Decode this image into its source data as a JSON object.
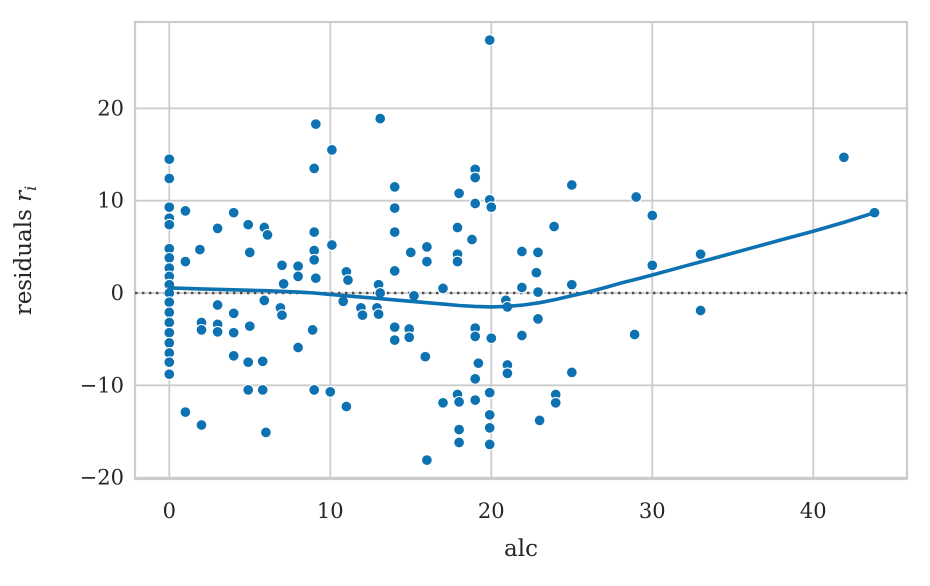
{
  "chart_data": {
    "type": "scatter",
    "title": "",
    "xlabel": "alc",
    "ylabel": {
      "text": "residuals ",
      "var": "r",
      "sub": "i"
    },
    "xlim": [
      -2.13,
      45.82
    ],
    "ylim": [
      -20.15,
      29.36
    ],
    "grid": true,
    "legend": "none",
    "xticks": [
      {
        "value": 0,
        "label": "0"
      },
      {
        "value": 10,
        "label": "10"
      },
      {
        "value": 20,
        "label": "20"
      },
      {
        "value": 30,
        "label": "30"
      },
      {
        "value": 40,
        "label": "40"
      }
    ],
    "yticks": [
      {
        "value": 20,
        "label": "20"
      },
      {
        "value": 10,
        "label": "10"
      },
      {
        "value": 0,
        "label": "0"
      },
      {
        "value": -10,
        "label": "−10"
      },
      {
        "value": -20,
        "label": "−20"
      }
    ],
    "zero_line": {
      "y": 0,
      "style": "dotted",
      "color": "#4d4d4d"
    },
    "colors": {
      "marker": "#0d72b2",
      "marker_edge": "#ffffff",
      "trend": "#0d72b2",
      "grid": "#cccccc",
      "spine": "#cccccc",
      "text": "#262626"
    },
    "points": [
      [
        0,
        14.5
      ],
      [
        0,
        12.4
      ],
      [
        0,
        9.3
      ],
      [
        0,
        8.1
      ],
      [
        0,
        7.4
      ],
      [
        0,
        4.8
      ],
      [
        0,
        3.8
      ],
      [
        0,
        2.7
      ],
      [
        0,
        1.8
      ],
      [
        0,
        0.9
      ],
      [
        0,
        0
      ],
      [
        0,
        -1
      ],
      [
        0,
        -2.1
      ],
      [
        0,
        -3.2
      ],
      [
        0,
        -4.3
      ],
      [
        0,
        -5.4
      ],
      [
        0,
        -6.5
      ],
      [
        0,
        -7.5
      ],
      [
        0,
        -8.8
      ],
      [
        1,
        8.9
      ],
      [
        1.9,
        4.7
      ],
      [
        1,
        3.4
      ],
      [
        2,
        -3.2
      ],
      [
        2,
        -4
      ],
      [
        1,
        -12.9
      ],
      [
        2,
        -14.3
      ],
      [
        3,
        7
      ],
      [
        4,
        8.7
      ],
      [
        4.9,
        7.4
      ],
      [
        5.9,
        7.1
      ],
      [
        6.1,
        6.3
      ],
      [
        5,
        4.4
      ],
      [
        3,
        -1.3
      ],
      [
        4,
        -2.2
      ],
      [
        3,
        -3.4
      ],
      [
        3,
        -4.2
      ],
      [
        4,
        -4.3
      ],
      [
        5,
        -3.6
      ],
      [
        5.9,
        -0.8
      ],
      [
        4,
        -6.8
      ],
      [
        4.9,
        -7.5
      ],
      [
        5.8,
        -7.4
      ],
      [
        4.9,
        -10.5
      ],
      [
        5.8,
        -10.5
      ],
      [
        6,
        -15.1
      ],
      [
        7,
        3
      ],
      [
        8,
        2.9
      ],
      [
        8,
        1.8
      ],
      [
        7.1,
        1
      ],
      [
        6.9,
        -1.6
      ],
      [
        7,
        -2.4
      ],
      [
        8,
        -5.9
      ],
      [
        8.9,
        -4
      ],
      [
        9,
        -10.5
      ],
      [
        10,
        -10.7
      ],
      [
        9,
        6.6
      ],
      [
        9,
        4.6
      ],
      [
        9,
        3.6
      ],
      [
        9.1,
        1.6
      ],
      [
        9.1,
        18.3
      ],
      [
        10.1,
        15.5
      ],
      [
        9,
        13.5
      ],
      [
        13.1,
        18.9
      ],
      [
        10.1,
        5.2
      ],
      [
        11,
        2.3
      ],
      [
        11.1,
        1.4
      ],
      [
        10.8,
        -0.9
      ],
      [
        11.9,
        -1.6
      ],
      [
        12,
        -2.4
      ],
      [
        12.9,
        -1.6
      ],
      [
        13,
        -2.3
      ],
      [
        13,
        0.9
      ],
      [
        13.1,
        0
      ],
      [
        11,
        -12.3
      ],
      [
        14,
        11.5
      ],
      [
        14,
        9.2
      ],
      [
        14,
        6.6
      ],
      [
        14,
        2.4
      ],
      [
        15,
        4.4
      ],
      [
        16,
        5
      ],
      [
        16,
        3.4
      ],
      [
        15.2,
        -0.3
      ],
      [
        14,
        -3.7
      ],
      [
        14.9,
        -3.9
      ],
      [
        14,
        -5.1
      ],
      [
        14.9,
        -4.8
      ],
      [
        15.9,
        -6.9
      ],
      [
        16,
        -18.1
      ],
      [
        17,
        0.5
      ],
      [
        17.9,
        7.1
      ],
      [
        18.8,
        5.8
      ],
      [
        17.9,
        4.2
      ],
      [
        17.9,
        3.4
      ],
      [
        19,
        13.4
      ],
      [
        19,
        12.5
      ],
      [
        18,
        10.8
      ],
      [
        19,
        9.7
      ],
      [
        19.9,
        10.1
      ],
      [
        20,
        9.3
      ],
      [
        19.9,
        27.4
      ],
      [
        19,
        -3.8
      ],
      [
        19,
        -4.7
      ],
      [
        20,
        -4.9
      ],
      [
        19.2,
        -7.6
      ],
      [
        19,
        -9.3
      ],
      [
        17,
        -11.9
      ],
      [
        17.9,
        -11
      ],
      [
        18,
        -11.8
      ],
      [
        19,
        -11.6
      ],
      [
        19.9,
        -10.8
      ],
      [
        19.9,
        -13.2
      ],
      [
        19.9,
        -14.6
      ],
      [
        18,
        -14.8
      ],
      [
        18,
        -16.2
      ],
      [
        19.9,
        -16.4
      ],
      [
        20.9,
        -0.8
      ],
      [
        21,
        -1.5
      ],
      [
        21.9,
        0.6
      ],
      [
        22.9,
        0.1
      ],
      [
        22.8,
        2.2
      ],
      [
        21.9,
        4.5
      ],
      [
        22.9,
        4.4
      ],
      [
        22.9,
        -2.8
      ],
      [
        21.9,
        -4.6
      ],
      [
        21,
        -7.8
      ],
      [
        21,
        -8.7
      ],
      [
        23,
        -13.8
      ],
      [
        24,
        -11
      ],
      [
        24,
        -11.9
      ],
      [
        23.9,
        7.2
      ],
      [
        25,
        11.7
      ],
      [
        25,
        0.9
      ],
      [
        25,
        -8.6
      ],
      [
        28.9,
        -4.5
      ],
      [
        29,
        10.4
      ],
      [
        30,
        8.4
      ],
      [
        30,
        3
      ],
      [
        33,
        4.2
      ],
      [
        33,
        -1.9
      ],
      [
        41.9,
        14.7
      ],
      [
        43.8,
        8.7
      ]
    ],
    "trend": {
      "name": "lowess",
      "path": [
        [
          0,
          0.55
        ],
        [
          2,
          0.45
        ],
        [
          4,
          0.35
        ],
        [
          6,
          0.25
        ],
        [
          8,
          0.1
        ],
        [
          9,
          0
        ],
        [
          10,
          -0.15
        ],
        [
          11,
          -0.3
        ],
        [
          12,
          -0.45
        ],
        [
          13,
          -0.6
        ],
        [
          14,
          -0.75
        ],
        [
          15,
          -0.9
        ],
        [
          16,
          -1.05
        ],
        [
          17,
          -1.2
        ],
        [
          18,
          -1.35
        ],
        [
          19,
          -1.45
        ],
        [
          20,
          -1.5
        ],
        [
          21,
          -1.45
        ],
        [
          22,
          -1.3
        ],
        [
          23,
          -1.05
        ],
        [
          24,
          -0.7
        ],
        [
          25,
          -0.3
        ],
        [
          26,
          0.1
        ],
        [
          27,
          0.55
        ],
        [
          28,
          1.05
        ],
        [
          29,
          1.5
        ],
        [
          30,
          1.95
        ],
        [
          32,
          2.9
        ],
        [
          34,
          3.85
        ],
        [
          36,
          4.8
        ],
        [
          38,
          5.75
        ],
        [
          40,
          6.7
        ],
        [
          42,
          7.7
        ],
        [
          43.8,
          8.7
        ]
      ]
    }
  }
}
